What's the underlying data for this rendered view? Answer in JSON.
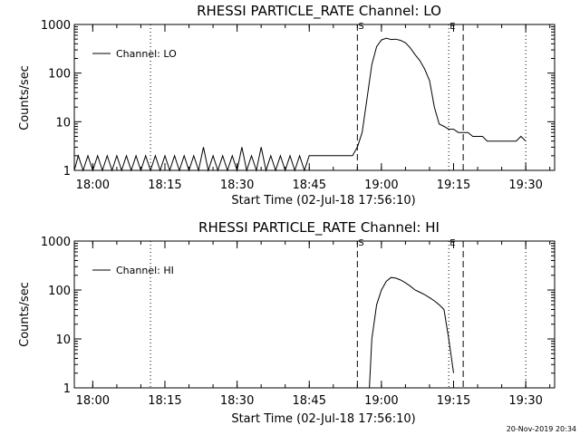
{
  "chart_data": [
    {
      "type": "line",
      "title": "RHESSI PARTICLE_RATE Channel: LO",
      "xlabel": "Start Time (02-Jul-18 17:56:10)",
      "ylabel": "Counts/sec",
      "yscale": "log",
      "ylim": [
        1,
        1000
      ],
      "xlim": [
        "17:56:10",
        "19:36:00"
      ],
      "x_ticks": [
        "18:00",
        "18:15",
        "18:30",
        "18:45",
        "19:00",
        "19:15",
        "19:30"
      ],
      "y_ticks": [
        "1",
        "10",
        "100",
        "1000"
      ],
      "legend": {
        "position": "top-left",
        "entries": [
          "Channel: LO"
        ]
      },
      "vertical_markers": [
        {
          "time": "18:12",
          "style": "dotted",
          "label": ""
        },
        {
          "time": "18:55",
          "style": "dashed",
          "label": "S"
        },
        {
          "time": "19:14",
          "style": "dotted",
          "label": "E"
        },
        {
          "time": "19:17",
          "style": "dashed",
          "label": ""
        },
        {
          "time": "19:30",
          "style": "dotted",
          "label": ""
        }
      ],
      "series": [
        {
          "name": "Channel: LO",
          "x": [
            "17:56:10",
            "17:57",
            "17:58",
            "17:59",
            "18:00",
            "18:01",
            "18:02",
            "18:03",
            "18:04",
            "18:05",
            "18:06",
            "18:07",
            "18:08",
            "18:09",
            "18:10",
            "18:11",
            "18:12",
            "18:13",
            "18:14",
            "18:15",
            "18:16",
            "18:17",
            "18:18",
            "18:19",
            "18:20",
            "18:21",
            "18:22",
            "18:23",
            "18:24",
            "18:25",
            "18:26",
            "18:27",
            "18:28",
            "18:29",
            "18:30",
            "18:31",
            "18:32",
            "18:33",
            "18:34",
            "18:35",
            "18:36",
            "18:37",
            "18:38",
            "18:39",
            "18:40",
            "18:41",
            "18:42",
            "18:43",
            "18:44",
            "18:45",
            "18:46",
            "18:47",
            "18:48",
            "18:49",
            "18:50",
            "18:51",
            "18:52",
            "18:53",
            "18:54",
            "18:55",
            "18:56",
            "18:57",
            "18:58",
            "18:59",
            "19:00",
            "19:01",
            "19:02",
            "19:03",
            "19:04",
            "19:05",
            "19:06",
            "19:07",
            "19:08",
            "19:09",
            "19:10",
            "19:11",
            "19:12",
            "19:13",
            "19:14",
            "19:15",
            "19:16",
            "19:17",
            "19:18",
            "19:19",
            "19:20",
            "19:21",
            "19:22",
            "19:23",
            "19:24",
            "19:25",
            "19:26",
            "19:27",
            "19:28",
            "19:29",
            "19:30"
          ],
          "values": [
            1,
            2,
            1,
            2,
            1,
            2,
            1,
            2,
            1,
            2,
            1,
            2,
            1,
            2,
            1,
            2,
            1,
            2,
            1,
            2,
            1,
            2,
            1,
            2,
            1,
            2,
            1,
            3,
            1,
            2,
            1,
            2,
            1,
            2,
            1,
            3,
            1,
            2,
            1,
            3,
            1,
            2,
            1,
            2,
            1,
            2,
            1,
            2,
            1,
            2,
            2,
            2,
            2,
            2,
            2,
            2,
            2,
            2,
            2,
            3,
            6,
            30,
            150,
            350,
            480,
            520,
            490,
            500,
            470,
            420,
            330,
            240,
            180,
            120,
            70,
            20,
            9,
            8,
            7,
            7,
            6,
            6,
            6,
            5,
            5,
            5,
            4,
            4,
            4,
            4,
            4,
            4,
            4,
            5,
            4
          ]
        }
      ]
    },
    {
      "type": "line",
      "title": "RHESSI PARTICLE_RATE Channel: HI",
      "xlabel": "Start Time (02-Jul-18 17:56:10)",
      "ylabel": "Counts/sec",
      "yscale": "log",
      "ylim": [
        1,
        1000
      ],
      "xlim": [
        "17:56:10",
        "19:36:00"
      ],
      "x_ticks": [
        "18:00",
        "18:15",
        "18:30",
        "18:45",
        "19:00",
        "19:15",
        "19:30"
      ],
      "y_ticks": [
        "1",
        "10",
        "100",
        "1000"
      ],
      "legend": {
        "position": "top-left",
        "entries": [
          "Channel: HI"
        ]
      },
      "vertical_markers": [
        {
          "time": "18:12",
          "style": "dotted",
          "label": ""
        },
        {
          "time": "18:55",
          "style": "dashed",
          "label": "S"
        },
        {
          "time": "19:14",
          "style": "dotted",
          "label": "E"
        },
        {
          "time": "19:17",
          "style": "dashed",
          "label": ""
        },
        {
          "time": "19:30",
          "style": "dotted",
          "label": ""
        }
      ],
      "series": [
        {
          "name": "Channel: HI",
          "x": [
            "18:57:30",
            "18:58",
            "18:59",
            "19:00",
            "19:01",
            "19:02",
            "19:03",
            "19:04",
            "19:05",
            "19:06",
            "19:07",
            "19:08",
            "19:09",
            "19:10",
            "19:11",
            "19:12",
            "19:13",
            "19:14",
            "19:15"
          ],
          "values": [
            1,
            10,
            50,
            100,
            150,
            180,
            175,
            160,
            140,
            120,
            100,
            90,
            80,
            70,
            60,
            50,
            40,
            10,
            2
          ]
        }
      ]
    }
  ],
  "footer": {
    "timestamp": "20-Nov-2019 20:34"
  }
}
